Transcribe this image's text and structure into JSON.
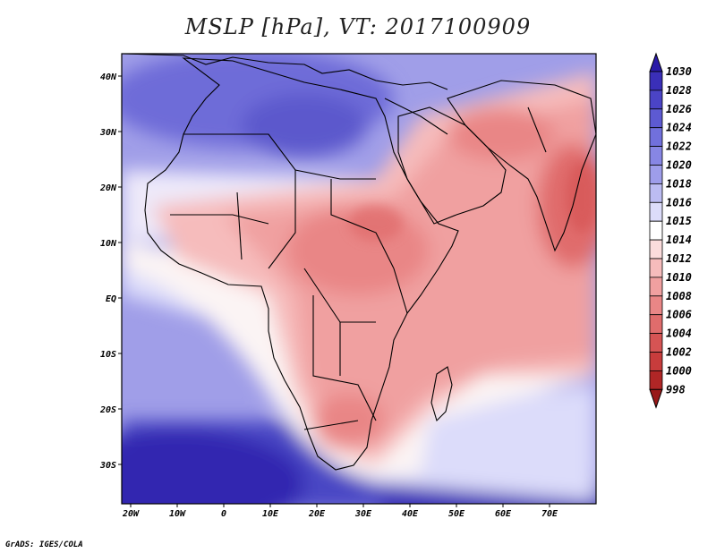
{
  "title": "MSLP [hPa], VT: 2017100909",
  "credit": "GrADS: IGES/COLA",
  "map": {
    "lon_labels": [
      "20W",
      "10W",
      "0",
      "10E",
      "20E",
      "30E",
      "40E",
      "50E",
      "60E",
      "70E"
    ],
    "lat_labels": [
      "40N",
      "30N",
      "20N",
      "10N",
      "EQ",
      "10S",
      "20S",
      "30S"
    ]
  },
  "colorbar": {
    "levels": [
      "1030",
      "1028",
      "1026",
      "1024",
      "1022",
      "1020",
      "1018",
      "1016",
      "1015",
      "1014",
      "1012",
      "1010",
      "1008",
      "1006",
      "1004",
      "1002",
      "1000",
      "998"
    ],
    "colors": [
      "#2a1aa8",
      "#3a2fb8",
      "#4b44c6",
      "#5d5ad2",
      "#7170dc",
      "#8786e4",
      "#9e9dea",
      "#bcbcf2",
      "#dcdcfa",
      "#ffffff",
      "#fbdcdc",
      "#f6bcbc",
      "#f0a0a0",
      "#e98686",
      "#e06c6c",
      "#d65454",
      "#c83c3c",
      "#b02626",
      "#981818"
    ]
  }
}
